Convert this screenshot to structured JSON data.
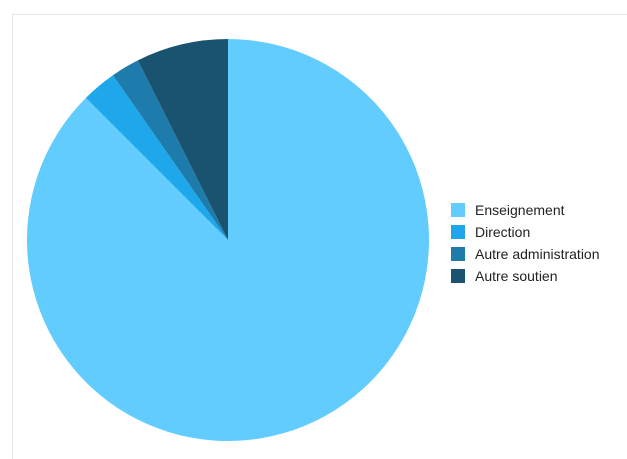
{
  "chart_data": {
    "type": "pie",
    "categories": [
      "Enseignement",
      "Direction",
      "Autre administration",
      "Autre soutien"
    ],
    "values": [
      87.5,
      2.8,
      2.3,
      7.4
    ],
    "colors": [
      "#63ccff",
      "#1ea7eb",
      "#1d7cab",
      "#1a5370"
    ],
    "start_angle_deg": 0,
    "direction": "clockwise",
    "legend_position": "right"
  },
  "legend": {
    "items": [
      {
        "label": "Enseignement",
        "color": "#63ccff"
      },
      {
        "label": "Direction",
        "color": "#1ea7eb"
      },
      {
        "label": "Autre administration",
        "color": "#1d7cab"
      },
      {
        "label": "Autre soutien",
        "color": "#1a5370"
      }
    ]
  }
}
